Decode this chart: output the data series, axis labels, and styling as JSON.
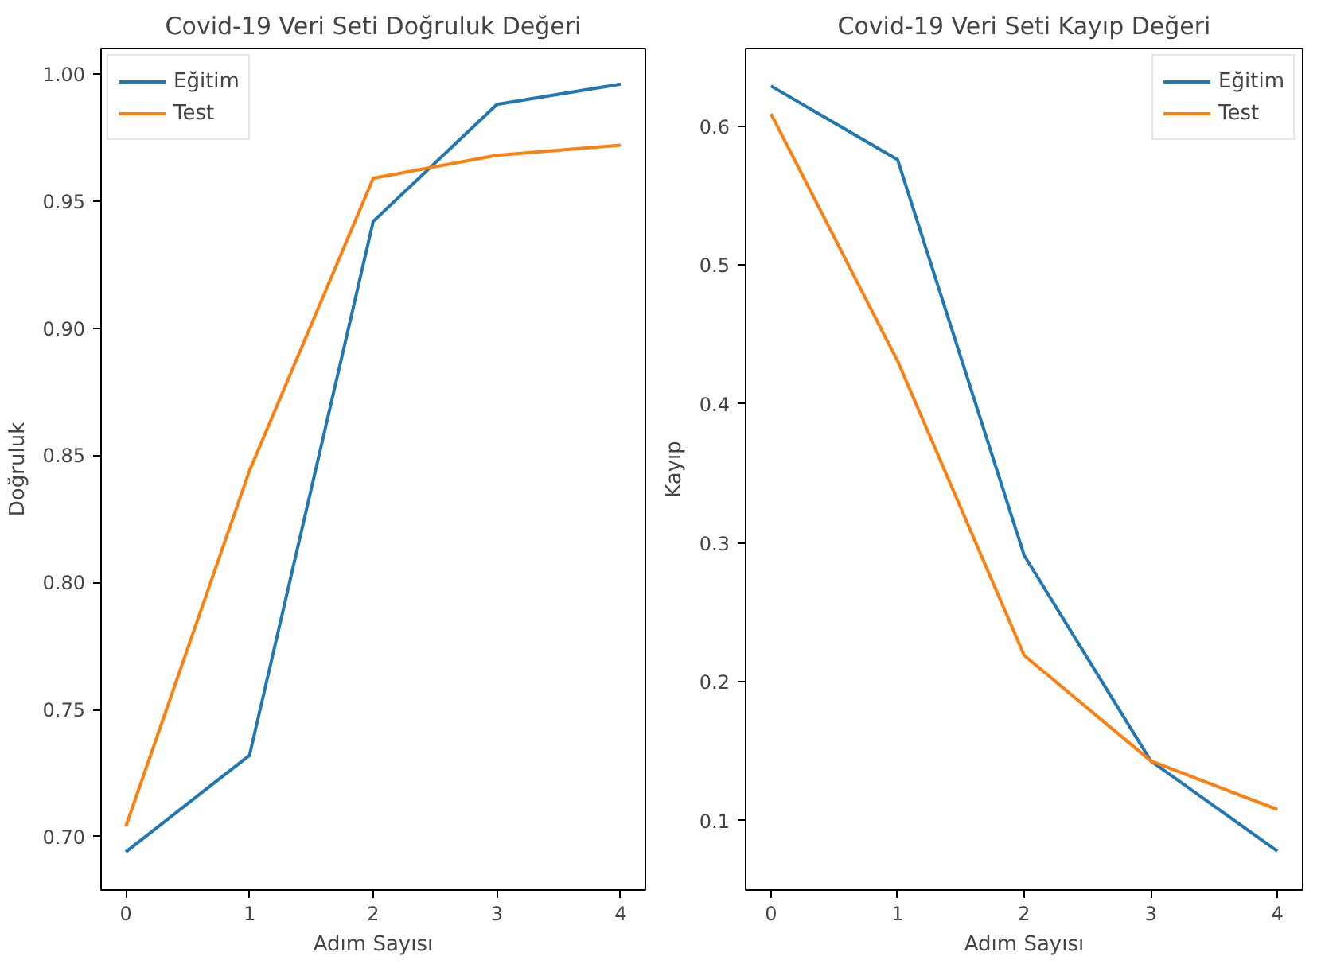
{
  "chart_data": [
    {
      "type": "line",
      "title": "Covid-19 Veri Seti Doğruluk Değeri",
      "xlabel": "Adım Sayısı",
      "ylabel": "Doğruluk",
      "x": [
        0,
        1,
        2,
        3,
        4
      ],
      "series": [
        {
          "name": "Eğitim",
          "color": "#1f77b4",
          "values": [
            0.694,
            0.732,
            0.942,
            0.988,
            0.996
          ]
        },
        {
          "name": "Test",
          "color": "#ff7f0e",
          "values": [
            0.704,
            0.844,
            0.959,
            0.968,
            0.972
          ]
        }
      ],
      "xlim": [
        -0.2,
        4.2
      ],
      "ylim": [
        0.679,
        1.01
      ],
      "xticks": [
        0,
        1,
        2,
        3,
        4
      ],
      "yticks": [
        {
          "value": 0.7,
          "label": "0.70"
        },
        {
          "value": 0.75,
          "label": "0.75"
        },
        {
          "value": 0.8,
          "label": "0.80"
        },
        {
          "value": 0.85,
          "label": "0.85"
        },
        {
          "value": 0.9,
          "label": "0.90"
        },
        {
          "value": 0.95,
          "label": "0.95"
        },
        {
          "value": 1.0,
          "label": "1.00"
        }
      ],
      "grid": false,
      "legend": "top left",
      "marker": "none",
      "line_style": "solid"
    },
    {
      "type": "line",
      "title": "Covid-19 Veri Seti Kayıp Değeri",
      "xlabel": "Adım Sayısı",
      "ylabel": "Kayıp",
      "x": [
        0,
        1,
        2,
        3,
        4
      ],
      "series": [
        {
          "name": "Eğitim",
          "color": "#1f77b4",
          "values": [
            0.629,
            0.576,
            0.291,
            0.143,
            0.078
          ]
        },
        {
          "name": "Test",
          "color": "#ff7f0e",
          "values": [
            0.609,
            0.431,
            0.219,
            0.143,
            0.108
          ]
        }
      ],
      "xlim": [
        -0.2,
        4.2
      ],
      "ylim": [
        0.05,
        0.656
      ],
      "xticks": [
        0,
        1,
        2,
        3,
        4
      ],
      "yticks": [
        0.1,
        0.2,
        0.3,
        0.4,
        0.5,
        0.6
      ],
      "grid": false,
      "legend": "top right",
      "marker": "none",
      "line_style": "solid"
    }
  ]
}
